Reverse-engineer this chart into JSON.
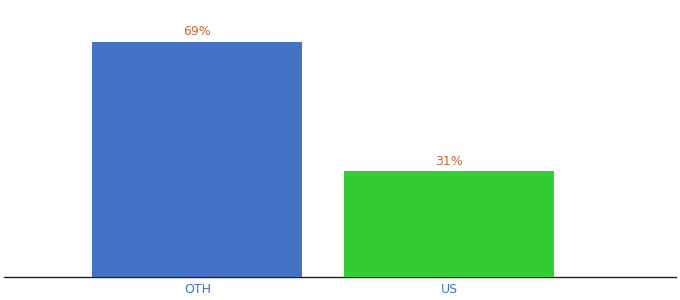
{
  "categories": [
    "OTH",
    "US"
  ],
  "values": [
    69,
    31
  ],
  "bar_colors": [
    "#4472c4",
    "#33cc33"
  ],
  "label_color": "#cc6633",
  "label_format": [
    "69%",
    "31%"
  ],
  "tick_label_color": "#4472c4",
  "ylim": [
    0,
    80
  ],
  "background_color": "#ffffff",
  "bar_width": 0.25,
  "label_fontsize": 9,
  "tick_fontsize": 9,
  "positions": [
    0.28,
    0.58
  ]
}
